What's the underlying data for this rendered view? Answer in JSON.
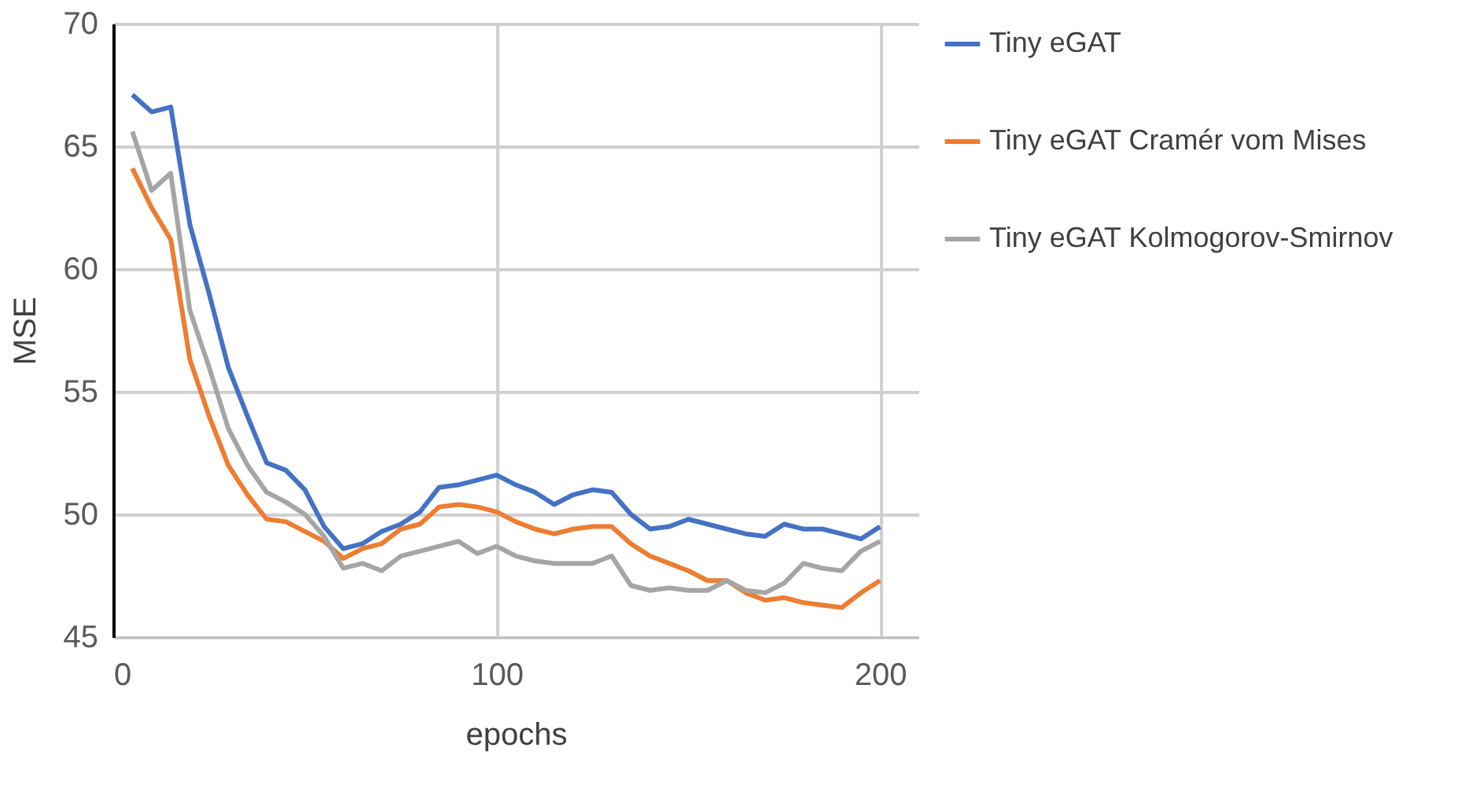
{
  "chart_data": {
    "type": "line",
    "xlabel": "epochs",
    "ylabel": "MSE",
    "x": [
      5,
      10,
      15,
      20,
      25,
      30,
      35,
      40,
      45,
      50,
      55,
      60,
      65,
      70,
      75,
      80,
      85,
      90,
      95,
      100,
      105,
      110,
      115,
      120,
      125,
      130,
      135,
      140,
      145,
      150,
      155,
      160,
      165,
      170,
      175,
      180,
      185,
      190,
      195,
      200
    ],
    "series": [
      {
        "name": "Tiny eGAT",
        "color": "#4472c4",
        "values": [
          67.1,
          66.4,
          66.6,
          61.8,
          59,
          56,
          54,
          52.1,
          51.8,
          51,
          49.5,
          48.6,
          48.8,
          49.3,
          49.6,
          50.1,
          51.1,
          51.2,
          51.4,
          51.6,
          51.2,
          50.9,
          50.4,
          50.8,
          51.0,
          50.9,
          50.0,
          49.4,
          49.5,
          49.8,
          49.6,
          49.4,
          49.2,
          49.1,
          49.6,
          49.4,
          49.4,
          49.2,
          49.0,
          49.5
        ]
      },
      {
        "name": "Tiny eGAT Cramér vom Mises",
        "color": "#ed7d31",
        "values": [
          64.1,
          62.5,
          61.2,
          56.3,
          54,
          52,
          50.8,
          49.8,
          49.7,
          49.3,
          48.9,
          48.2,
          48.6,
          48.8,
          49.4,
          49.6,
          50.3,
          50.4,
          50.3,
          50.1,
          49.7,
          49.4,
          49.2,
          49.4,
          49.5,
          49.5,
          48.8,
          48.3,
          48.0,
          47.7,
          47.3,
          47.3,
          46.8,
          46.5,
          46.6,
          46.4,
          46.3,
          46.2,
          46.8,
          47.3
        ]
      },
      {
        "name": "Tiny eGAT Kolmogorov-Smirnov",
        "color": "#a5a5a5",
        "values": [
          65.6,
          63.2,
          63.9,
          58.3,
          56,
          53.5,
          52,
          50.9,
          50.5,
          50,
          49.1,
          47.8,
          48,
          47.7,
          48.3,
          48.5,
          48.7,
          48.9,
          48.4,
          48.7,
          48.3,
          48.1,
          48,
          48,
          48,
          48.3,
          47.1,
          46.9,
          47,
          46.9,
          46.9,
          47.3,
          46.9,
          46.8,
          47.2,
          48.0,
          47.8,
          47.7,
          48.5,
          48.9
        ]
      }
    ],
    "xlim": [
      0,
      210
    ],
    "xticks": [
      0,
      100,
      200
    ],
    "ylim": [
      45,
      70
    ],
    "yticks": [
      45,
      50,
      55,
      60,
      65,
      70
    ],
    "grid": true,
    "legend": "right",
    "marker": "none",
    "line_style": "solid"
  }
}
